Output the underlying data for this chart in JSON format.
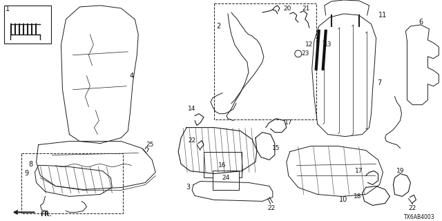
{
  "bg_color": "#ffffff",
  "diagram_id": "TX6AB4003",
  "lc": "#1a1a1a",
  "lw": 0.7,
  "figsize": [
    6.4,
    3.2
  ],
  "dpi": 100
}
